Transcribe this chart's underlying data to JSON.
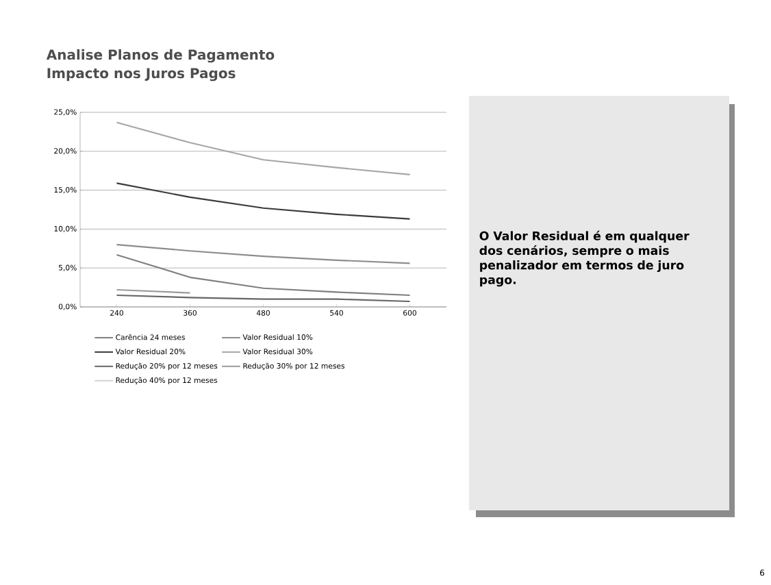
{
  "chart_data": {
    "type": "line",
    "title": "Analise Planos de Pagamento",
    "subtitle": "Impacto nos Juros Pagos",
    "categories": [
      "240",
      "360",
      "480",
      "540",
      "600"
    ],
    "series": [
      {
        "name": "Carência 24 meses",
        "color": "#7f7f7f",
        "values": [
          6.7,
          3.8,
          2.4,
          1.9,
          1.5
        ]
      },
      {
        "name": "Valor Residual 10%",
        "color": "#8c8c8c",
        "values": [
          8.0,
          7.2,
          6.5,
          6.0,
          5.6
        ]
      },
      {
        "name": "Valor Residual 20%",
        "color": "#3a3a3a",
        "values": [
          15.9,
          14.1,
          12.7,
          11.9,
          11.3
        ]
      },
      {
        "name": "Valor Residual 30%",
        "color": "#a6a6a6",
        "values": [
          23.7,
          21.1,
          18.9,
          17.9,
          17.0
        ]
      },
      {
        "name": "Redução 20% por 12 meses",
        "color": "#666666",
        "values": [
          1.5,
          1.2,
          1.0,
          1.0,
          0.7
        ]
      },
      {
        "name": "Redução 30% por 12 meses",
        "color": "#9a9a9a",
        "values": [
          2.2,
          1.8,
          null,
          null,
          null
        ]
      },
      {
        "name": "Redução 40% por 12 meses",
        "color": "#d4d4d4",
        "values": [
          null,
          null,
          null,
          null,
          null
        ]
      }
    ],
    "ylim": [
      0,
      25
    ],
    "yticks": [
      {
        "value": 0,
        "label": "0,0%"
      },
      {
        "value": 5,
        "label": "5,0%"
      },
      {
        "value": 10,
        "label": "10,0%"
      },
      {
        "value": 15,
        "label": "15,0%"
      },
      {
        "value": 20,
        "label": "20,0%"
      },
      {
        "value": 25,
        "label": "25,0%"
      }
    ],
    "grid": "y",
    "legend": "bottom",
    "marker": "none",
    "line_style": "solid",
    "annotations": [
      "O Valor Residual é em qualquer dos cenários, sempre o mais penalizador em termos de juro pago.",
      "6"
    ]
  }
}
